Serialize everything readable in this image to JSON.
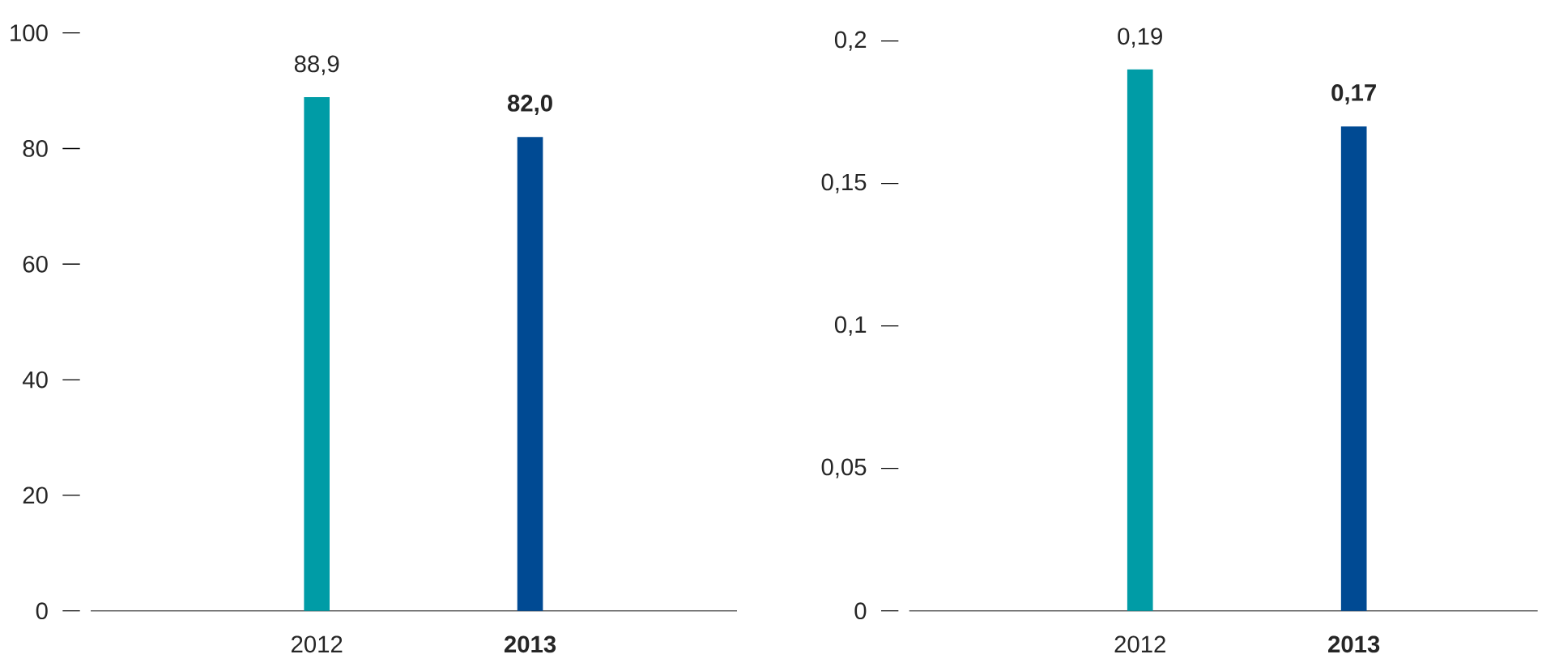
{
  "chart_data": [
    {
      "type": "bar",
      "categories": [
        "2012",
        "2013"
      ],
      "colors": [
        "#009ca6",
        "#004a93"
      ],
      "values": [
        88.9,
        82.0
      ],
      "value_labels": [
        "88,9",
        "82,0"
      ],
      "ylim": [
        0,
        100
      ],
      "yticks": [
        0,
        20,
        40,
        60,
        80,
        100
      ]
    },
    {
      "type": "bar",
      "categories": [
        "2012",
        "2013"
      ],
      "colors": [
        "#009ca6",
        "#004a93"
      ],
      "values": [
        0.19,
        0.17
      ],
      "value_labels": [
        "0,19",
        "0,17"
      ],
      "ylim": [
        0,
        0.2
      ],
      "yticks": [
        0,
        {
          "value": 0.05,
          "label": "0,05"
        },
        {
          "value": 0.1,
          "label": "0,1"
        },
        {
          "value": 0.15,
          "label": "0,15"
        },
        {
          "value": 0.2,
          "label": "0,2"
        }
      ]
    }
  ]
}
